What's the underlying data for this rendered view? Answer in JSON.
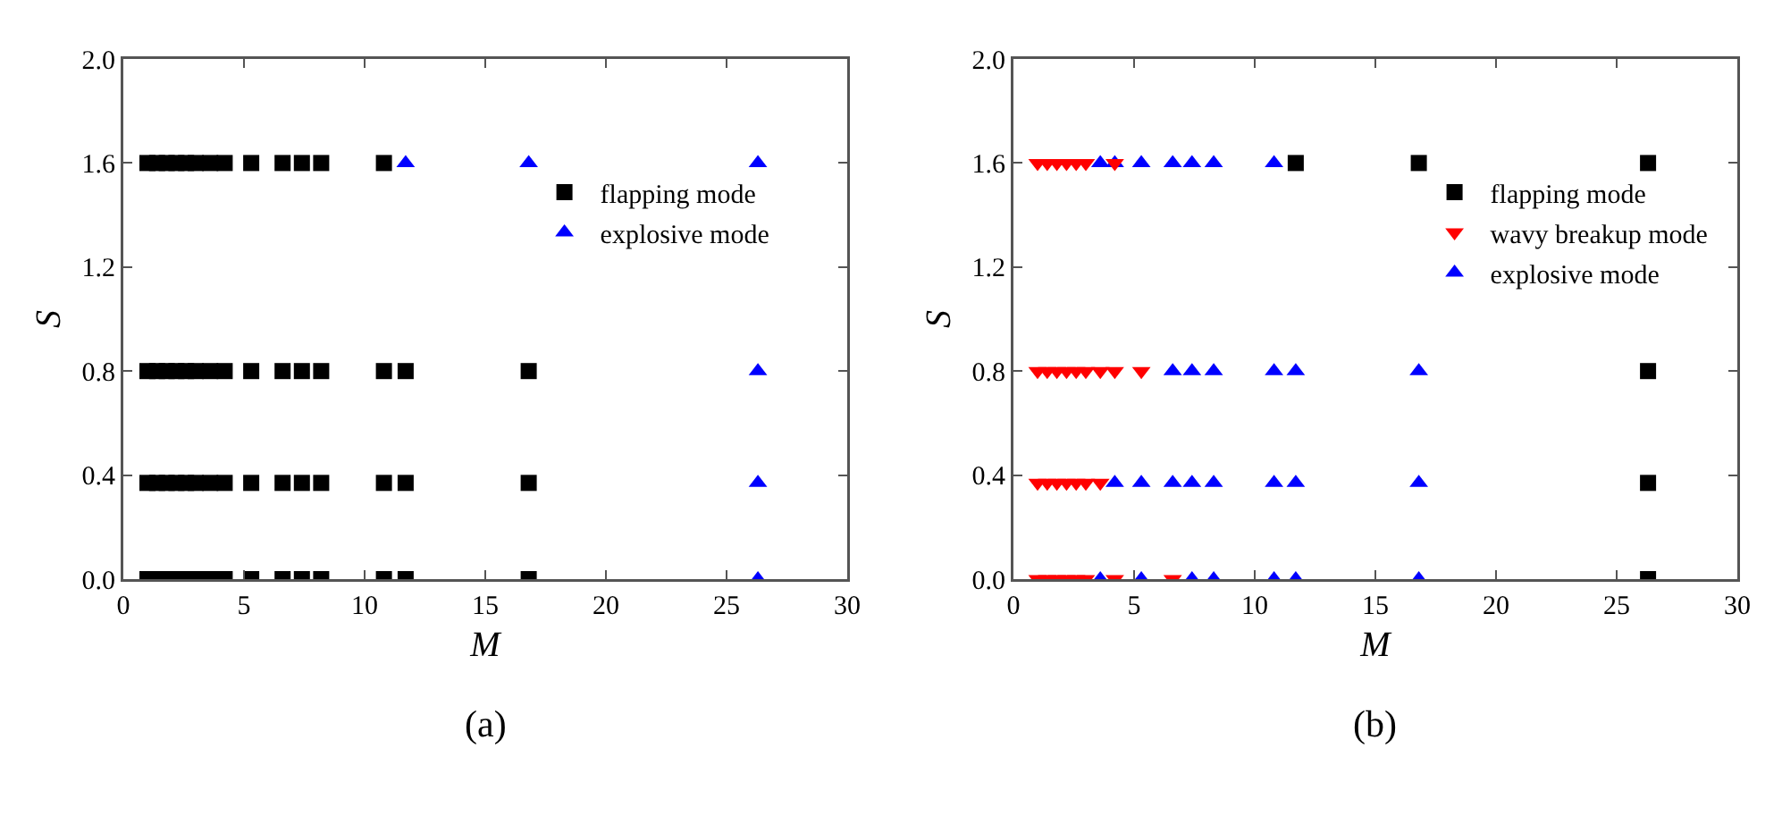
{
  "chart_data": [
    {
      "type": "scatter",
      "xlabel": "M",
      "ylabel": "S",
      "annotations": [
        "(a)"
      ],
      "xlim": [
        0,
        30
      ],
      "xticks": [
        0,
        5,
        10,
        15,
        20,
        25,
        30
      ],
      "ylim": [
        0,
        2.0
      ],
      "yticks": [
        {
          "value": 0,
          "label": "0.0"
        },
        {
          "value": 0.4,
          "label": "0.4"
        },
        {
          "value": 0.8,
          "label": "0.8"
        },
        {
          "value": 1.2,
          "label": "1.2"
        },
        {
          "value": 1.6,
          "label": "1.6"
        },
        {
          "value": 2.0,
          "label": "2.0"
        }
      ],
      "grid": false,
      "legend": "top right",
      "series": [
        {
          "name": "flapping mode",
          "color": "#000000",
          "marker": "square",
          "x": [
            1.0,
            1.4,
            1.8,
            2.2,
            2.6,
            3.0,
            3.6,
            4.2,
            5.3,
            6.6,
            7.4,
            8.2,
            10.8,
            1.0,
            1.4,
            1.8,
            2.2,
            2.6,
            3.0,
            3.6,
            4.2,
            5.3,
            6.6,
            7.4,
            8.2,
            10.8,
            11.7,
            16.8,
            1.0,
            1.4,
            1.8,
            2.2,
            2.6,
            3.0,
            3.6,
            4.2,
            5.3,
            6.6,
            7.4,
            8.2,
            10.8,
            11.7,
            16.8,
            1.0,
            1.4,
            1.8,
            2.2,
            2.6,
            3.0,
            3.6,
            4.2,
            5.3,
            6.6,
            7.4,
            8.2,
            10.8,
            11.7,
            16.8
          ],
          "values": [
            1.6,
            1.6,
            1.6,
            1.6,
            1.6,
            1.6,
            1.6,
            1.6,
            1.6,
            1.6,
            1.6,
            1.6,
            1.6,
            0.8,
            0.8,
            0.8,
            0.8,
            0.8,
            0.8,
            0.8,
            0.8,
            0.8,
            0.8,
            0.8,
            0.8,
            0.8,
            0.8,
            0.8,
            0.37,
            0.37,
            0.37,
            0.37,
            0.37,
            0.37,
            0.37,
            0.37,
            0.37,
            0.37,
            0.37,
            0.37,
            0.37,
            0.37,
            0.37,
            0,
            0,
            0,
            0,
            0,
            0,
            0,
            0,
            0,
            0,
            0,
            0,
            0,
            0,
            0
          ]
        },
        {
          "name": "explosive mode",
          "color": "#0000ff",
          "marker": "triangle",
          "x": [
            11.7,
            16.8,
            26.3,
            26.3,
            26.3,
            26.3
          ],
          "values": [
            1.6,
            1.6,
            1.6,
            0.8,
            0.37,
            0
          ]
        }
      ]
    },
    {
      "type": "scatter",
      "xlabel": "M",
      "ylabel": "S",
      "annotations": [
        "(b)"
      ],
      "xlim": [
        0,
        30
      ],
      "xticks": [
        0,
        5,
        10,
        15,
        20,
        25,
        30
      ],
      "ylim": [
        0,
        2.0
      ],
      "yticks": [
        {
          "value": 0,
          "label": "0.0"
        },
        {
          "value": 0.4,
          "label": "0.4"
        },
        {
          "value": 0.8,
          "label": "0.8"
        },
        {
          "value": 1.2,
          "label": "1.2"
        },
        {
          "value": 1.6,
          "label": "1.6"
        },
        {
          "value": 2.0,
          "label": "2.0"
        }
      ],
      "grid": false,
      "legend": "top right",
      "series": [
        {
          "name": "flapping mode",
          "color": "#000000",
          "marker": "square",
          "x": [
            11.7,
            16.8,
            26.3,
            26.3,
            26.3,
            26.3
          ],
          "values": [
            1.6,
            1.6,
            1.6,
            0.8,
            0.37,
            0
          ]
        },
        {
          "name": "wavy breakup mode",
          "color": "#ff0000",
          "marker": "triangle-down",
          "x": [
            1.0,
            1.4,
            1.8,
            2.2,
            2.6,
            3.0,
            4.2,
            1.0,
            1.4,
            1.8,
            2.2,
            2.6,
            3.0,
            3.6,
            4.2,
            5.3,
            1.0,
            1.4,
            1.8,
            2.2,
            2.6,
            3.0,
            3.6,
            1.0,
            1.4,
            1.8,
            2.2,
            2.6,
            3.0,
            4.2,
            6.6
          ],
          "values": [
            1.6,
            1.6,
            1.6,
            1.6,
            1.6,
            1.6,
            1.6,
            0.8,
            0.8,
            0.8,
            0.8,
            0.8,
            0.8,
            0.8,
            0.8,
            0.8,
            0.37,
            0.37,
            0.37,
            0.37,
            0.37,
            0.37,
            0.37,
            0,
            0,
            0,
            0,
            0,
            0,
            0,
            0
          ]
        },
        {
          "name": "explosive mode",
          "color": "#0000ff",
          "marker": "triangle",
          "x": [
            3.6,
            4.2,
            5.3,
            6.6,
            7.4,
            8.3,
            10.8,
            6.6,
            7.4,
            8.3,
            10.8,
            11.7,
            16.8,
            4.2,
            5.3,
            6.6,
            7.4,
            8.3,
            10.8,
            11.7,
            16.8,
            3.6,
            5.3,
            7.4,
            8.3,
            10.8,
            11.7,
            16.8
          ],
          "values": [
            1.6,
            1.6,
            1.6,
            1.6,
            1.6,
            1.6,
            1.6,
            0.8,
            0.8,
            0.8,
            0.8,
            0.8,
            0.8,
            0.37,
            0.37,
            0.37,
            0.37,
            0.37,
            0.37,
            0.37,
            0.37,
            0,
            0,
            0,
            0,
            0,
            0,
            0
          ]
        }
      ]
    }
  ]
}
